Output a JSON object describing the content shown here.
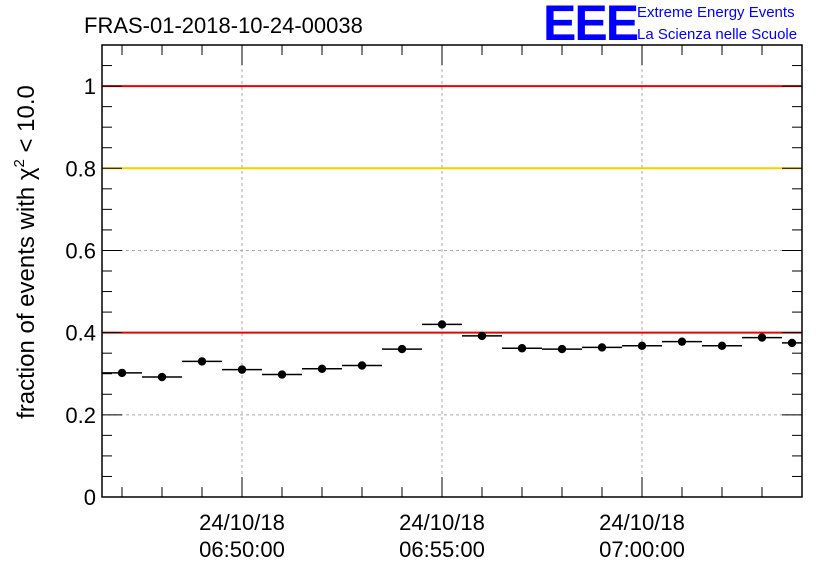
{
  "logo": {
    "mark": "EEE",
    "line1": "Extreme Energy Events",
    "line2": "La Scienza nelle Scuole",
    "color": "#0000ff"
  },
  "chart_data": {
    "type": "scatter",
    "title": "FRAS-01-2018-10-24-00038",
    "ylabel_prefix": "fraction of events with ",
    "ylabel_symbol": "χ",
    "ylabel_sup": "2",
    "ylabel_suffix": " < 10.0",
    "ylim": [
      0,
      1.1
    ],
    "yticks": [
      0,
      0.2,
      0.4,
      0.6,
      0.8,
      1
    ],
    "ytick_labels": [
      "0",
      "0.2",
      "0.4",
      "0.6",
      "0.8",
      "1"
    ],
    "xlim": [
      "2018-10-24 06:46:30",
      "2018-10-24 07:04:00"
    ],
    "xticks": [
      {
        "date": "24/10/18",
        "time": "06:50:00",
        "value": "2018-10-24 06:50:00"
      },
      {
        "date": "24/10/18",
        "time": "06:55:00",
        "value": "2018-10-24 06:55:00"
      },
      {
        "date": "24/10/18",
        "time": "07:00:00",
        "value": "2018-10-24 07:00:00"
      }
    ],
    "grid": true,
    "reference_lines": [
      {
        "y": 1.0,
        "color": "#ee0000"
      },
      {
        "y": 0.8,
        "color": "#ffcc00"
      },
      {
        "y": 0.4,
        "color": "#ee0000"
      }
    ],
    "series": [
      {
        "color": "#000000",
        "points": [
          {
            "x_start": "2018-10-24 06:46:30",
            "x_end": "2018-10-24 06:47:30",
            "y": 0.302
          },
          {
            "x_start": "2018-10-24 06:47:30",
            "x_end": "2018-10-24 06:48:30",
            "y": 0.292
          },
          {
            "x_start": "2018-10-24 06:48:30",
            "x_end": "2018-10-24 06:49:30",
            "y": 0.33
          },
          {
            "x_start": "2018-10-24 06:49:30",
            "x_end": "2018-10-24 06:50:30",
            "y": 0.31
          },
          {
            "x_start": "2018-10-24 06:50:30",
            "x_end": "2018-10-24 06:51:30",
            "y": 0.298
          },
          {
            "x_start": "2018-10-24 06:51:30",
            "x_end": "2018-10-24 06:52:30",
            "y": 0.312
          },
          {
            "x_start": "2018-10-24 06:52:30",
            "x_end": "2018-10-24 06:53:30",
            "y": 0.32
          },
          {
            "x_start": "2018-10-24 06:53:30",
            "x_end": "2018-10-24 06:54:30",
            "y": 0.36
          },
          {
            "x_start": "2018-10-24 06:54:30",
            "x_end": "2018-10-24 06:55:30",
            "y": 0.42
          },
          {
            "x_start": "2018-10-24 06:55:30",
            "x_end": "2018-10-24 06:56:30",
            "y": 0.392
          },
          {
            "x_start": "2018-10-24 06:56:30",
            "x_end": "2018-10-24 06:57:30",
            "y": 0.362
          },
          {
            "x_start": "2018-10-24 06:57:30",
            "x_end": "2018-10-24 06:58:30",
            "y": 0.36
          },
          {
            "x_start": "2018-10-24 06:58:30",
            "x_end": "2018-10-24 06:59:30",
            "y": 0.364
          },
          {
            "x_start": "2018-10-24 06:59:30",
            "x_end": "2018-10-24 07:00:30",
            "y": 0.368
          },
          {
            "x_start": "2018-10-24 07:00:30",
            "x_end": "2018-10-24 07:01:30",
            "y": 0.378
          },
          {
            "x_start": "2018-10-24 07:01:30",
            "x_end": "2018-10-24 07:02:30",
            "y": 0.368
          },
          {
            "x_start": "2018-10-24 07:02:30",
            "x_end": "2018-10-24 07:03:30",
            "y": 0.388
          },
          {
            "x_start": "2018-10-24 07:03:30",
            "x_end": "2018-10-24 07:04:00",
            "y": 0.375
          }
        ]
      }
    ]
  }
}
